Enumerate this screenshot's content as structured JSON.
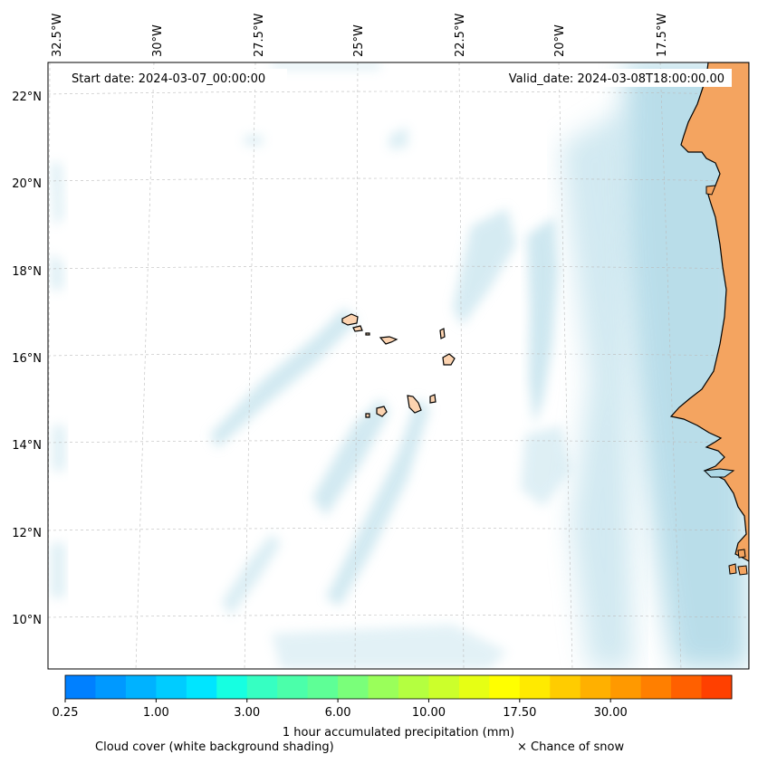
{
  "map": {
    "start_date": "Start date: 2024-03-07_00:00:00",
    "valid_date": "Valid_date: 2024-03-08T18:00:00.00",
    "lon_labels": [
      "32.5°W",
      "30°W",
      "27.5°W",
      "25°W",
      "22.5°W",
      "20°W",
      "17.5°W"
    ],
    "lat_labels": [
      "22°N",
      "20°N",
      "18°N",
      "16°N",
      "14°N",
      "12°N",
      "10°N"
    ],
    "land_color": "#f4a460",
    "island_color": "#fcd3b0",
    "cloud_color": "#add8e6"
  },
  "colorbar": {
    "colors": [
      "#0080ff",
      "#0099ff",
      "#00b2ff",
      "#00ccff",
      "#00e5ff",
      "#16ffe1",
      "#36ffc2",
      "#4bffaa",
      "#5eff96",
      "#7aff7a",
      "#9aff5a",
      "#b4ff40",
      "#ccff2b",
      "#e6ff14",
      "#ffff00",
      "#ffea00",
      "#ffcc00",
      "#ffb000",
      "#ff9900",
      "#ff7f00",
      "#ff6000",
      "#ff4000"
    ],
    "tick_labels": [
      "0.25",
      "1.00",
      "3.00",
      "6.00",
      "10.00",
      "17.50",
      "30.00"
    ],
    "label": "1 hour accumulated precipitation (mm)"
  },
  "footer": {
    "cloud_note": "Cloud cover (white background shading)",
    "snow_note": "× Chance of snow"
  }
}
